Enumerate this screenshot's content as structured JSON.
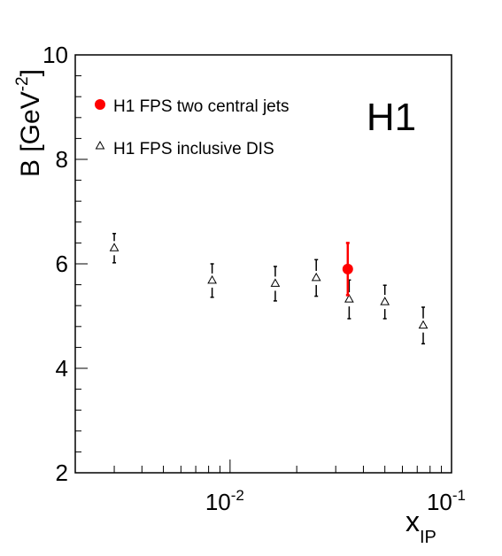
{
  "chart_data": {
    "type": "scatter",
    "title": "",
    "watermark": "H1",
    "xlabel": "x",
    "xlabel_sub": "IP",
    "ylabel": "B [GeV",
    "ylabel_sup": "-2",
    "ylabel_close": "]",
    "x_scale": "log",
    "xlim": [
      0.002,
      0.1
    ],
    "ylim": [
      2,
      10
    ],
    "grid": false,
    "legend_position": "top-left",
    "y_ticks": [
      {
        "value": 2,
        "label": "2"
      },
      {
        "value": 4,
        "label": "4"
      },
      {
        "value": 6,
        "label": "6"
      },
      {
        "value": 8,
        "label": "8"
      },
      {
        "value": 10,
        "label": "10"
      }
    ],
    "x_ticks": [
      {
        "value": 0.01,
        "base": "10",
        "exp": "-2"
      },
      {
        "value": 0.1,
        "base": "10",
        "exp": "-1"
      }
    ],
    "series": [
      {
        "name": "H1 FPS inclusive DIS",
        "marker": "open-triangle",
        "color": "#000000",
        "points": [
          {
            "x": 0.003,
            "y": 6.3,
            "err": 0.28
          },
          {
            "x": 0.0083,
            "y": 5.68,
            "err": 0.32
          },
          {
            "x": 0.016,
            "y": 5.62,
            "err": 0.33
          },
          {
            "x": 0.0245,
            "y": 5.73,
            "err": 0.35
          },
          {
            "x": 0.0345,
            "y": 5.32,
            "err": 0.37
          },
          {
            "x": 0.05,
            "y": 5.27,
            "err": 0.32
          },
          {
            "x": 0.0745,
            "y": 4.82,
            "err": 0.35
          }
        ]
      },
      {
        "name": "H1 FPS two central jets",
        "marker": "filled-circle",
        "color": "#ff0000",
        "points": [
          {
            "x": 0.034,
            "y": 5.9,
            "err": 0.5
          }
        ]
      }
    ]
  }
}
